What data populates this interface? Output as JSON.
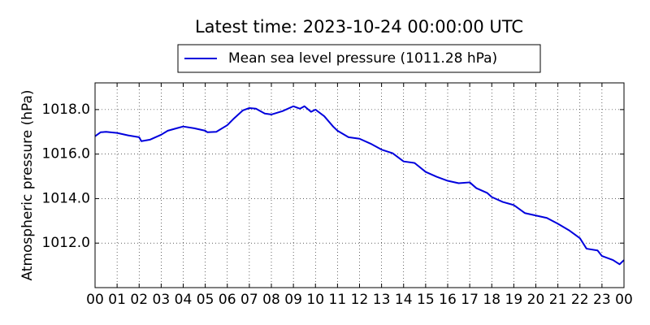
{
  "chart_data": {
    "type": "line",
    "title": "Latest time: 2023-10-24 00:00:00 UTC",
    "ylabel": "Atmospheric pressure (hPa)",
    "legend": "upper center",
    "grid": true,
    "series": [
      {
        "name": "Mean sea level pressure (1011.28 hPa)",
        "color": "#0000dd",
        "x": [
          0,
          0.25,
          0.5,
          1,
          1.5,
          2,
          2.1,
          2.5,
          3,
          3.3,
          3.7,
          4,
          4.5,
          5,
          5.1,
          5.5,
          6,
          6.3,
          6.7,
          7,
          7.3,
          7.7,
          8,
          8.5,
          9,
          9.3,
          9.5,
          9.8,
          10,
          10.4,
          10.8,
          11,
          11.5,
          12,
          12.5,
          13,
          13.5,
          14,
          14.5,
          15,
          15.5,
          16,
          16.5,
          17,
          17.3,
          17.8,
          18,
          18.5,
          19,
          19.5,
          20,
          20.5,
          21,
          21.5,
          22,
          22.3,
          22.8,
          23,
          23.5,
          23.8,
          24
        ],
        "values": [
          1016.8,
          1016.98,
          1017.0,
          1016.95,
          1016.84,
          1016.76,
          1016.58,
          1016.65,
          1016.87,
          1017.05,
          1017.16,
          1017.24,
          1017.16,
          1017.05,
          1016.98,
          1017.0,
          1017.3,
          1017.6,
          1017.96,
          1018.07,
          1018.04,
          1017.82,
          1017.78,
          1017.93,
          1018.15,
          1018.04,
          1018.15,
          1017.9,
          1018.0,
          1017.7,
          1017.24,
          1017.05,
          1016.76,
          1016.69,
          1016.47,
          1016.2,
          1016.04,
          1015.67,
          1015.6,
          1015.2,
          1014.98,
          1014.8,
          1014.69,
          1014.73,
          1014.47,
          1014.25,
          1014.07,
          1013.85,
          1013.71,
          1013.35,
          1013.24,
          1013.13,
          1012.87,
          1012.58,
          1012.22,
          1011.75,
          1011.67,
          1011.42,
          1011.24,
          1011.05,
          1011.24
        ]
      }
    ],
    "xlim": [
      0,
      24
    ],
    "xticks": [
      {
        "value": 0,
        "label": "00"
      },
      {
        "value": 1,
        "label": "01"
      },
      {
        "value": 2,
        "label": "02"
      },
      {
        "value": 3,
        "label": "03"
      },
      {
        "value": 4,
        "label": "04"
      },
      {
        "value": 5,
        "label": "05"
      },
      {
        "value": 6,
        "label": "06"
      },
      {
        "value": 7,
        "label": "07"
      },
      {
        "value": 8,
        "label": "08"
      },
      {
        "value": 9,
        "label": "09"
      },
      {
        "value": 10,
        "label": "10"
      },
      {
        "value": 11,
        "label": "11"
      },
      {
        "value": 12,
        "label": "12"
      },
      {
        "value": 13,
        "label": "13"
      },
      {
        "value": 14,
        "label": "14"
      },
      {
        "value": 15,
        "label": "15"
      },
      {
        "value": 16,
        "label": "16"
      },
      {
        "value": 17,
        "label": "17"
      },
      {
        "value": 18,
        "label": "18"
      },
      {
        "value": 19,
        "label": "19"
      },
      {
        "value": 20,
        "label": "20"
      },
      {
        "value": 21,
        "label": "21"
      },
      {
        "value": 22,
        "label": "22"
      },
      {
        "value": 23,
        "label": "23"
      },
      {
        "value": 24,
        "label": "00"
      }
    ],
    "ylim": [
      1010.0,
      1019.2
    ],
    "yticks": [
      {
        "value": 1012,
        "label": "1012.0"
      },
      {
        "value": 1014,
        "label": "1014.0"
      },
      {
        "value": 1016,
        "label": "1016.0"
      },
      {
        "value": 1018,
        "label": "1018.0"
      }
    ]
  }
}
